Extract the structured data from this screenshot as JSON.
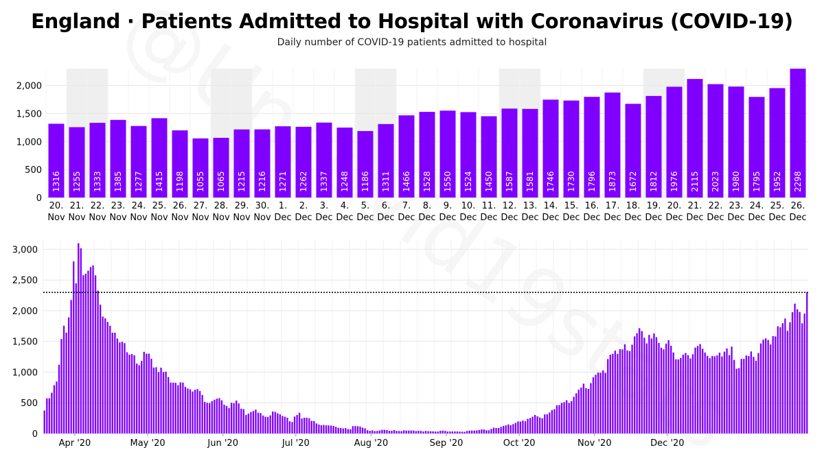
{
  "title": "England · Patients Admitted to Hospital with Coronavirus (COVID-19)",
  "subtitle": "Daily number of COVID-19 patients admitted to hospital",
  "watermark": "@Uncovid19stats",
  "colors": {
    "bar": "#7f00ff",
    "weekend": "#efefef",
    "grid": "#e6e6e6",
    "reference_line": "#000000"
  },
  "chart_data": [
    {
      "type": "bar",
      "categories": [
        "20.\nNov",
        "21.\nNov",
        "22.\nNov",
        "23.\nNov",
        "24.\nNov",
        "25.\nNov",
        "26.\nNov",
        "27.\nNov",
        "28.\nNov",
        "29.\nNov",
        "30.\nNov",
        "1.\nDec",
        "2.\nDec",
        "3.\nDec",
        "4.\nDec",
        "5.\nDec",
        "6.\nDec",
        "7.\nDec",
        "8.\nDec",
        "9.\nDec",
        "10.\nDec",
        "11.\nDec",
        "12.\nDec",
        "13.\nDec",
        "14.\nDec",
        "15.\nDec",
        "16.\nDec",
        "17.\nDec",
        "18.\nDec",
        "19.\nDec",
        "20.\nDec",
        "21.\nDec",
        "22.\nDec",
        "23.\nDec",
        "24.\nDec",
        "25.\nDec",
        "26.\nDec"
      ],
      "values": [
        1316,
        1255,
        1333,
        1385,
        1277,
        1415,
        1198,
        1055,
        1065,
        1215,
        1216,
        1271,
        1262,
        1337,
        1248,
        1186,
        1311,
        1466,
        1528,
        1550,
        1524,
        1450,
        1587,
        1581,
        1746,
        1730,
        1796,
        1873,
        1672,
        1812,
        1976,
        2115,
        2023,
        1980,
        1795,
        1952,
        2298
      ],
      "weekend_shaded": [
        "21.\nNov",
        "22.\nNov",
        "28.\nNov",
        "29.\nNov",
        "5.\nDec",
        "6.\nDec",
        "12.\nDec",
        "13.\nDec",
        "19.\nDec",
        "20.\nDec"
      ],
      "ylim": [
        0,
        2300
      ],
      "yticks": [
        "0",
        "500",
        "1,000",
        "1,500",
        "2,000"
      ],
      "data_labels": true,
      "grid": true
    },
    {
      "type": "bar",
      "x_range": [
        "2020-03-19",
        "2020-12-26"
      ],
      "xticks": [
        "Apr '20",
        "May '20",
        "Jun '20",
        "Jul '20",
        "Aug '20",
        "Sep '20",
        "Oct '20",
        "Nov '20",
        "Dec '20"
      ],
      "values": [
        375,
        573,
        574,
        665,
        787,
        846,
        1119,
        1540,
        1756,
        1643,
        1891,
        2174,
        2803,
        2445,
        3099,
        3017,
        2579,
        2602,
        2651,
        2711,
        2738,
        2577,
        2328,
        2099,
        1904,
        1877,
        1817,
        1756,
        1641,
        1642,
        1548,
        1484,
        1495,
        1472,
        1323,
        1285,
        1295,
        1273,
        1139,
        1113,
        1182,
        1330,
        1300,
        1300,
        1218,
        1074,
        1079,
        1001,
        1072,
        1002,
        1008,
        920,
        829,
        828,
        826,
        787,
        833,
        830,
        761,
        733,
        719,
        684,
        713,
        723,
        693,
        627,
        515,
        500,
        496,
        527,
        550,
        568,
        576,
        541,
        470,
        448,
        414,
        500,
        494,
        536,
        489,
        404,
        397,
        303,
        324,
        351,
        366,
        389,
        338,
        333,
        292,
        273,
        269,
        295,
        358,
        352,
        329,
        312,
        286,
        273,
        257,
        199,
        188,
        276,
        301,
        337,
        245,
        257,
        257,
        249,
        206,
        204,
        164,
        146,
        135,
        140,
        134,
        132,
        129,
        124,
        109,
        93,
        89,
        82,
        87,
        71,
        70,
        120,
        121,
        119,
        114,
        95,
        84,
        53,
        44,
        51,
        40,
        42,
        49,
        60,
        60,
        56,
        44,
        44,
        55,
        43,
        41,
        38,
        51,
        48,
        48,
        49,
        48,
        39,
        45,
        42,
        33,
        42,
        38,
        37,
        36,
        31,
        32,
        44,
        48,
        43,
        33,
        33,
        33,
        34,
        34,
        30,
        30,
        27,
        41,
        47,
        48,
        49,
        51,
        57,
        66,
        66,
        53,
        52,
        75,
        94,
        89,
        89,
        108,
        124,
        133,
        148,
        134,
        153,
        173,
        196,
        195,
        210,
        200,
        239,
        252,
        274,
        302,
        280,
        261,
        248,
        311,
        314,
        342,
        383,
        395,
        460,
        463,
        499,
        511,
        542,
        498,
        527,
        598,
        655,
        714,
        748,
        812,
        739,
        727,
        821,
        915,
        956,
        992,
        989,
        1027,
        989,
        1213,
        1283,
        1297,
        1349,
        1298,
        1373,
        1370,
        1452,
        1353,
        1343,
        1447,
        1581,
        1634,
        1715,
        1668,
        1561,
        1468,
        1606,
        1547,
        1630,
        1568,
        1476,
        1397,
        1370,
        1464,
        1520,
        1429,
        1319,
        1208,
        1207,
        1231,
        1284,
        1311,
        1276,
        1222,
        1291,
        1399,
        1426,
        1457,
        1381,
        1318,
        1265,
        1226,
        1262,
        1257,
        1272,
        1316,
        1255,
        1333,
        1385,
        1277,
        1415,
        1198,
        1055,
        1065,
        1215,
        1216,
        1271,
        1262,
        1337,
        1248,
        1186,
        1311,
        1466,
        1528,
        1550,
        1524,
        1450,
        1587,
        1581,
        1746,
        1730,
        1796,
        1873,
        1672,
        1812,
        1976,
        2115,
        2023,
        1980,
        1795,
        1952,
        2298
      ],
      "reference_line": 2298,
      "ylim": [
        0,
        3150
      ],
      "yticks": [
        "0",
        "500",
        "1,000",
        "1,500",
        "2,000",
        "2,500",
        "3,000"
      ],
      "grid": true
    }
  ]
}
